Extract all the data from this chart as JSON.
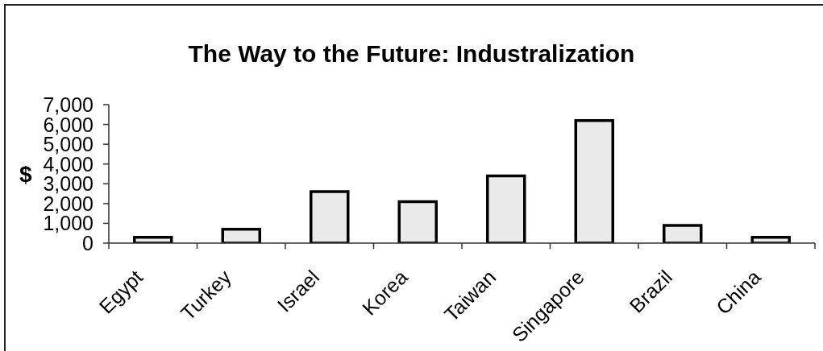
{
  "chart_data": {
    "type": "bar",
    "title": "The Way to the Future: Industralization",
    "ylabel": "$",
    "categories": [
      "Egypt",
      "Turkey",
      "Israel",
      "Korea",
      "Taiwan",
      "Singapore",
      "Brazil",
      "China"
    ],
    "values": [
      300,
      700,
      2600,
      2100,
      3400,
      6200,
      900,
      300
    ],
    "color": "#eaeaea",
    "ylim": [
      0,
      7000
    ],
    "yticks": [
      0,
      {
        "value": 1000,
        "label": "1,000"
      },
      {
        "value": 2000,
        "label": "2,000"
      },
      {
        "value": 3000,
        "label": "3,000"
      },
      {
        "value": 4000,
        "label": "4,000"
      },
      {
        "value": 5000,
        "label": "5,000"
      },
      {
        "value": 6000,
        "label": "6,000"
      },
      {
        "value": 7000,
        "label": "7,000"
      }
    ]
  }
}
